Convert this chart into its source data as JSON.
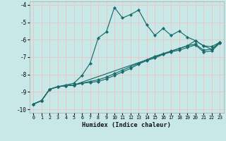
{
  "xlabel": "Humidex (Indice chaleur)",
  "bg_color": "#c8e8e8",
  "grid_color": "#e8c8c8",
  "line_color": "#1a6b6b",
  "xlim": [
    -0.5,
    23.5
  ],
  "ylim": [
    -10.2,
    -3.8
  ],
  "yticks": [
    -10,
    -9,
    -8,
    -7,
    -6,
    -5,
    -4
  ],
  "xticks": [
    0,
    1,
    2,
    3,
    4,
    5,
    6,
    7,
    8,
    9,
    10,
    11,
    12,
    13,
    14,
    15,
    16,
    17,
    18,
    19,
    20,
    21,
    22,
    23
  ],
  "line1_x": [
    0,
    1,
    2,
    3,
    4,
    5,
    6,
    7,
    8,
    9,
    10,
    11,
    12,
    13,
    14,
    15,
    16,
    17,
    18,
    19,
    20,
    21,
    22,
    23
  ],
  "line1_y": [
    -9.7,
    -9.5,
    -8.85,
    -8.7,
    -8.6,
    -8.5,
    -8.05,
    -7.35,
    -5.9,
    -5.55,
    -4.15,
    -4.75,
    -4.55,
    -4.3,
    -5.15,
    -5.75,
    -5.35,
    -5.75,
    -5.5,
    -5.85,
    -6.05,
    -6.35,
    -6.4,
    -6.15
  ],
  "line2_x": [
    0,
    1,
    2,
    3,
    4,
    5,
    6,
    7,
    8,
    9,
    10,
    11,
    12,
    13,
    14,
    15,
    16,
    17,
    18,
    19,
    20,
    21,
    22,
    23
  ],
  "line2_y": [
    -9.7,
    -9.5,
    -8.85,
    -8.7,
    -8.65,
    -8.6,
    -8.5,
    -8.4,
    -8.3,
    -8.15,
    -7.95,
    -7.75,
    -7.55,
    -7.35,
    -7.15,
    -6.95,
    -6.8,
    -6.65,
    -6.5,
    -6.35,
    -6.25,
    -6.6,
    -6.55,
    -6.2
  ],
  "line3_x": [
    0,
    1,
    2,
    3,
    4,
    5,
    6,
    7,
    8,
    9,
    10,
    11,
    12,
    13,
    14,
    15,
    16,
    17,
    18,
    19,
    20,
    21,
    22,
    23
  ],
  "line3_y": [
    -9.7,
    -9.5,
    -8.85,
    -8.7,
    -8.65,
    -8.6,
    -8.5,
    -8.45,
    -8.4,
    -8.25,
    -8.05,
    -7.85,
    -7.65,
    -7.4,
    -7.2,
    -7.05,
    -6.85,
    -6.7,
    -6.6,
    -6.45,
    -6.3,
    -6.7,
    -6.65,
    -6.2
  ],
  "line4_x": [
    0,
    1,
    2,
    3,
    4,
    5,
    19,
    20,
    21,
    22,
    23
  ],
  "line4_y": [
    -9.7,
    -9.5,
    -8.85,
    -8.7,
    -8.65,
    -8.6,
    -6.35,
    -6.05,
    -6.35,
    -6.55,
    -6.15
  ]
}
